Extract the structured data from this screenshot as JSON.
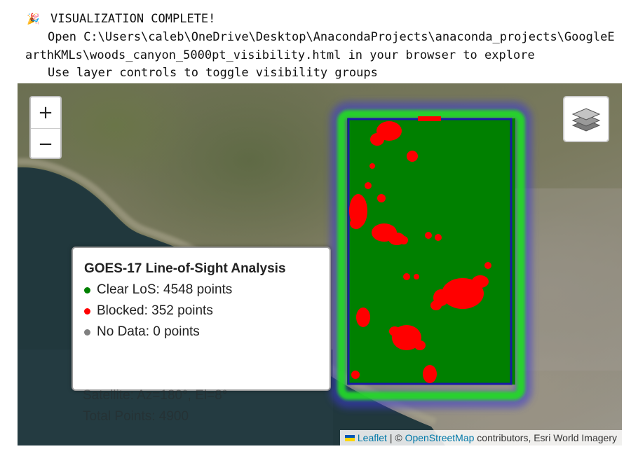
{
  "console": {
    "line1": "VISUALIZATION COMPLETE!",
    "line2": "Open C:\\Users\\caleb\\OneDrive\\Desktop\\AnacondaProjects\\anaconda_projects\\GoogleE",
    "line3": "arthKMLs\\woods_canyon_5000pt_visibility.html in your browser to explore",
    "line4": "Use layer controls to toggle visibility groups",
    "icon": "party-popper-icon"
  },
  "map": {
    "zoom_in_label": "+",
    "zoom_out_label": "−",
    "layers_icon": "layers-icon",
    "colors": {
      "clear": "#008000",
      "blocked": "#ff0000",
      "nodata": "#808080",
      "outline": "#1a1aa6",
      "glow_inner": "#22dd22",
      "glow_outer": "#3a3ad0"
    }
  },
  "legend": {
    "title": "GOES-17 Line-of-Sight Analysis",
    "clear": "Clear LoS: 4548 points",
    "blocked": "Blocked: 352 points",
    "nodata": "No Data: 0 points",
    "satellite": "Satellite: Az=180°, El=8°",
    "total": "Total Points: 4900"
  },
  "attribution": {
    "leaflet": "Leaflet",
    "sep": " | © ",
    "osm": "OpenStreetMap",
    "rest": " contributors, Esri World Imagery"
  }
}
